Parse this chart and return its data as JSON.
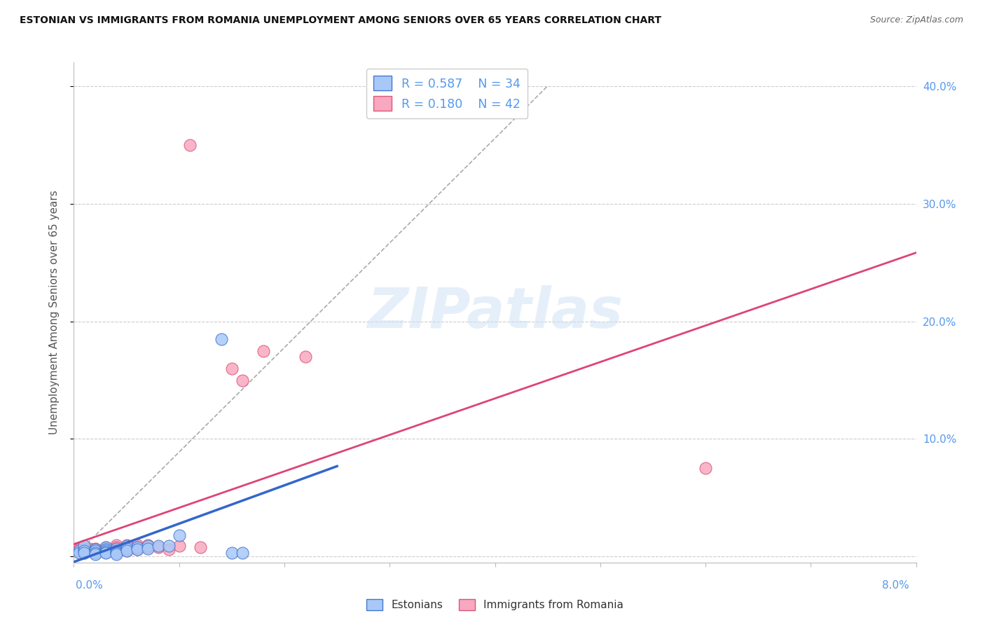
{
  "title": "ESTONIAN VS IMMIGRANTS FROM ROMANIA UNEMPLOYMENT AMONG SENIORS OVER 65 YEARS CORRELATION CHART",
  "source": "Source: ZipAtlas.com",
  "ylabel": "Unemployment Among Seniors over 65 years",
  "xlim": [
    0.0,
    0.08
  ],
  "ylim": [
    -0.005,
    0.42
  ],
  "r_estonian": 0.587,
  "n_estonian": 34,
  "r_romanian": 0.18,
  "n_romanian": 42,
  "estonian_fill": "#a8c8f8",
  "estonian_edge": "#4477cc",
  "romanian_fill": "#f8a8c0",
  "romanian_edge": "#dd5577",
  "estonian_line_color": "#3366cc",
  "romanian_line_color": "#dd4477",
  "diag_color": "#aaaaaa",
  "grid_color": "#cccccc",
  "tick_color": "#5599ee",
  "watermark": "ZIPatlas",
  "background": "#ffffff",
  "estonian_x": [
    0.0005,
    0.0005,
    0.001,
    0.001,
    0.001,
    0.001,
    0.002,
    0.002,
    0.002,
    0.002,
    0.003,
    0.003,
    0.003,
    0.003,
    0.003,
    0.003,
    0.004,
    0.004,
    0.004,
    0.004,
    0.004,
    0.005,
    0.005,
    0.005,
    0.006,
    0.006,
    0.007,
    0.007,
    0.008,
    0.009,
    0.01,
    0.014,
    0.015,
    0.016
  ],
  "estonian_y": [
    0.005,
    0.003,
    0.007,
    0.009,
    0.005,
    0.003,
    0.006,
    0.005,
    0.003,
    0.002,
    0.007,
    0.008,
    0.006,
    0.005,
    0.004,
    0.003,
    0.007,
    0.005,
    0.004,
    0.003,
    0.002,
    0.009,
    0.007,
    0.005,
    0.008,
    0.006,
    0.009,
    0.007,
    0.009,
    0.009,
    0.018,
    0.185,
    0.003,
    0.003
  ],
  "romanian_x": [
    0.0003,
    0.0004,
    0.0005,
    0.0005,
    0.001,
    0.001,
    0.001,
    0.001,
    0.0015,
    0.0015,
    0.002,
    0.002,
    0.002,
    0.002,
    0.003,
    0.003,
    0.003,
    0.003,
    0.003,
    0.004,
    0.004,
    0.004,
    0.004,
    0.005,
    0.005,
    0.005,
    0.005,
    0.006,
    0.006,
    0.006,
    0.007,
    0.007,
    0.008,
    0.009,
    0.01,
    0.011,
    0.012,
    0.015,
    0.016,
    0.018,
    0.022,
    0.06
  ],
  "romanian_y": [
    0.006,
    0.005,
    0.006,
    0.004,
    0.006,
    0.005,
    0.004,
    0.003,
    0.007,
    0.005,
    0.007,
    0.006,
    0.005,
    0.004,
    0.008,
    0.007,
    0.006,
    0.005,
    0.004,
    0.01,
    0.008,
    0.006,
    0.004,
    0.01,
    0.008,
    0.007,
    0.005,
    0.01,
    0.008,
    0.006,
    0.01,
    0.008,
    0.008,
    0.006,
    0.009,
    0.35,
    0.008,
    0.16,
    0.15,
    0.175,
    0.17,
    0.075
  ],
  "yticks": [
    0.0,
    0.1,
    0.2,
    0.3,
    0.4
  ],
  "ytick_labels": [
    "",
    "10.0%",
    "20.0%",
    "30.0%",
    "40.0%"
  ]
}
